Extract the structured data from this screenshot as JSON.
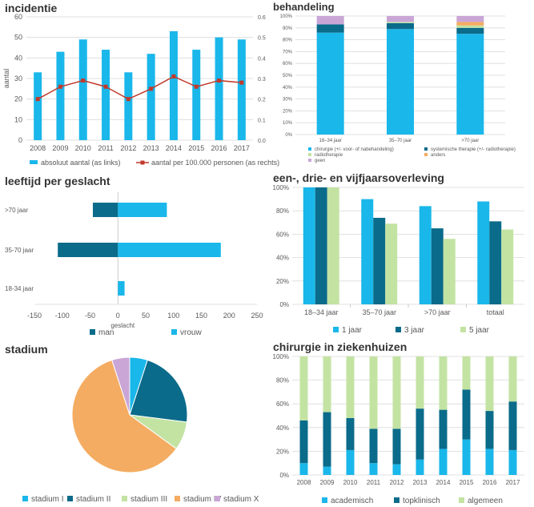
{
  "colors": {
    "light_blue": "#1ab7ea",
    "dark_teal": "#0b6b8a",
    "light_green": "#c3e3a3",
    "orange": "#f4ac62",
    "lavender": "#c9a6d6",
    "red": "#c0392b",
    "grid": "#d9d9d9"
  },
  "chart_data": [
    {
      "id": "incidentie",
      "type": "bar",
      "title": "incidentie",
      "ylabel": "aantal",
      "categories": [
        "2008",
        "2009",
        "2010",
        "2011",
        "2012",
        "2013",
        "2014",
        "2015",
        "2016",
        "2017"
      ],
      "ylim": [
        0,
        60
      ],
      "yticks": [
        "0",
        "10",
        "20",
        "30",
        "40",
        "50",
        "60"
      ],
      "y2lim": [
        0,
        0.6
      ],
      "y2ticks": [
        "0.0",
        "0.1",
        "0.2",
        "0.3",
        "0.4",
        "0.5",
        "0.6"
      ],
      "series": [
        {
          "name": "absoluut aantal (as links)",
          "type": "bar",
          "values": [
            33,
            43,
            49,
            44,
            33,
            42,
            53,
            44,
            50,
            49
          ]
        },
        {
          "name": "aantal per 100.000 personen (as rechts)",
          "type": "line",
          "axis": "right",
          "values": [
            0.2,
            0.26,
            0.29,
            0.26,
            0.2,
            0.25,
            0.31,
            0.26,
            0.29,
            0.28
          ]
        }
      ],
      "legend": "bottom"
    },
    {
      "id": "behandeling",
      "type": "bar",
      "stacked": true,
      "title": "behandeling",
      "categories": [
        "18–34 jaar",
        "35–70 jaar",
        ">70 jaar"
      ],
      "ylim": [
        0,
        100
      ],
      "yticks": [
        "0%",
        "10%",
        "20%",
        "30%",
        "40%",
        "50%",
        "60%",
        "70%",
        "80%",
        "90%",
        "100%"
      ],
      "series": [
        {
          "name": "chirurgie (+/- voor- of nabehandeling)",
          "values": [
            86,
            89,
            85
          ]
        },
        {
          "name": "systemische therapie (+/- radiotherapie)",
          "values": [
            7,
            5,
            5
          ]
        },
        {
          "name": "radiotherapie",
          "values": [
            0,
            1,
            2
          ]
        },
        {
          "name": "anders",
          "values": [
            0,
            0,
            3
          ]
        },
        {
          "name": "geen",
          "values": [
            7,
            5,
            5
          ]
        }
      ],
      "legend": "bottom"
    },
    {
      "id": "leeftijd",
      "type": "bar",
      "orientation": "horizontal",
      "title": "leeftijd per geslacht",
      "xlabel": "geslacht",
      "categories": [
        ">70 jaar",
        "35-70 jaar",
        "18-34 jaar"
      ],
      "xlim": [
        -150,
        250
      ],
      "xticks": [
        "-150",
        "-100",
        "-50",
        "0",
        "50",
        "100",
        "150",
        "200",
        "250"
      ],
      "series": [
        {
          "name": "man",
          "values": [
            -45,
            -108,
            0
          ]
        },
        {
          "name": "vrouw",
          "values": [
            88,
            185,
            12
          ]
        }
      ],
      "legend": "bottom"
    },
    {
      "id": "overleving",
      "type": "bar",
      "title": "een-, drie- en vijfjaarsoverleving",
      "categories": [
        "18–34 jaar",
        "35–70 jaar",
        ">70 jaar",
        "totaal"
      ],
      "ylim": [
        0,
        100
      ],
      "yticks": [
        "0%",
        "20%",
        "40%",
        "60%",
        "80%",
        "100%"
      ],
      "series": [
        {
          "name": "1 jaar",
          "values": [
            100,
            90,
            84,
            88
          ]
        },
        {
          "name": "3 jaar",
          "values": [
            100,
            74,
            65,
            71
          ]
        },
        {
          "name": "5 jaar",
          "values": [
            100,
            69,
            56,
            64
          ]
        }
      ],
      "legend": "bottom"
    },
    {
      "id": "stadium",
      "type": "pie",
      "title": "stadium",
      "labels": [
        "stadium I",
        "stadium II",
        "stadium III",
        "stadium IV",
        "stadium X"
      ],
      "values": [
        5,
        22,
        8,
        60,
        5
      ],
      "legend": "bottom"
    },
    {
      "id": "chirurgie",
      "type": "bar",
      "stacked": true,
      "title": "chirurgie in ziekenhuizen",
      "categories": [
        "2008",
        "2009",
        "2010",
        "2011",
        "2012",
        "2013",
        "2014",
        "2015",
        "2016",
        "2017"
      ],
      "ylim": [
        0,
        100
      ],
      "yticks": [
        "0%",
        "20%",
        "40%",
        "60%",
        "80%",
        "100%"
      ],
      "series": [
        {
          "name": "academisch",
          "values": [
            10,
            7,
            21,
            10,
            9,
            13,
            22,
            30,
            22,
            21
          ]
        },
        {
          "name": "topklinisch",
          "values": [
            36,
            46,
            27,
            29,
            30,
            43,
            33,
            42,
            32,
            41
          ]
        },
        {
          "name": "algemeen",
          "values": [
            54,
            47,
            52,
            61,
            61,
            44,
            45,
            28,
            46,
            38
          ]
        }
      ],
      "legend": "bottom"
    }
  ]
}
